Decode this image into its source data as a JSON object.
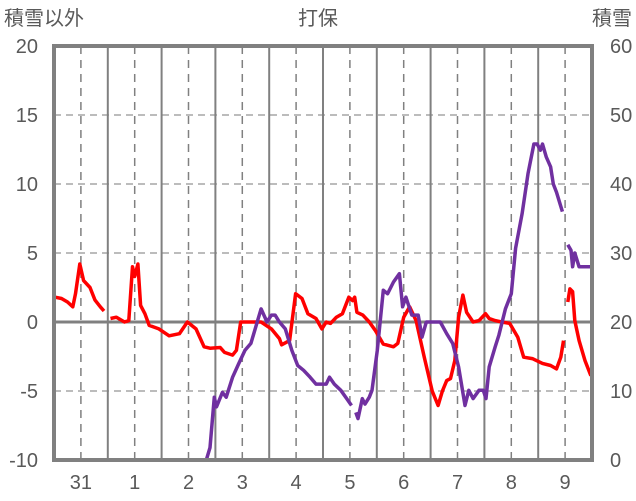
{
  "chart_data": {
    "type": "line",
    "title": "打保",
    "ylabel_left": "積雪以外",
    "ylabel_right": "積雪",
    "ylim_left": [
      -10,
      20
    ],
    "ylim_right": [
      0,
      60
    ],
    "yticks_left": [
      "20",
      "15",
      "10",
      "5",
      "0",
      "-5",
      "-10"
    ],
    "yticks_right": [
      "60",
      "50",
      "40",
      "30",
      "20",
      "10",
      "0"
    ],
    "xlim_days": [
      0,
      10
    ],
    "xtick_labels": [
      "31",
      "1",
      "2",
      "3",
      "4",
      "5",
      "6",
      "7",
      "8",
      "9"
    ],
    "grid": true,
    "colors": {
      "temp": "#ff0000",
      "snow": "#7030a0",
      "axis": "#808080",
      "grid": "#808080"
    },
    "series": [
      {
        "name": "積雪以外",
        "axis": "left",
        "color": "#ff0000",
        "points": [
          [
            0.02,
            1.8
          ],
          [
            0.14,
            1.7
          ],
          [
            0.25,
            1.45
          ],
          [
            0.35,
            1.1
          ],
          [
            0.4,
            2.05
          ],
          [
            0.48,
            4.2
          ],
          [
            0.55,
            3.0
          ],
          [
            0.67,
            2.5
          ],
          [
            0.76,
            1.6
          ],
          [
            0.86,
            1.1
          ],
          [
            0.93,
            0.8
          ],
          null,
          [
            1.05,
            0.25
          ],
          [
            1.16,
            0.35
          ],
          [
            1.31,
            0
          ],
          [
            1.39,
            0.1
          ],
          [
            1.46,
            4.0
          ],
          [
            1.5,
            3.3
          ],
          [
            1.56,
            4.2
          ],
          [
            1.61,
            1.2
          ],
          [
            1.69,
            0.6
          ],
          [
            1.77,
            -0.25
          ],
          [
            1.95,
            -0.5
          ],
          [
            2.14,
            -1.0
          ],
          [
            2.33,
            -0.85
          ],
          [
            2.48,
            0
          ],
          [
            2.64,
            -0.5
          ],
          [
            2.79,
            -1.8
          ],
          [
            2.9,
            -1.9
          ],
          [
            3.09,
            -1.85
          ],
          [
            3.17,
            -2.2
          ],
          [
            3.32,
            -2.4
          ],
          [
            3.39,
            -2.05
          ],
          [
            3.47,
            0
          ],
          [
            3.85,
            0
          ],
          [
            4.04,
            -0.5
          ],
          [
            4.19,
            -1.2
          ],
          [
            4.23,
            -1.65
          ],
          [
            4.38,
            -1.35
          ],
          [
            4.49,
            2.05
          ],
          [
            4.61,
            1.7
          ],
          [
            4.72,
            0.6
          ],
          [
            4.87,
            0.25
          ],
          [
            4.98,
            -0.5
          ],
          [
            5.06,
            0
          ],
          [
            5.14,
            -0.1
          ],
          [
            5.25,
            0.35
          ],
          [
            5.36,
            0.6
          ],
          [
            5.48,
            1.8
          ],
          [
            5.55,
            1.55
          ],
          [
            5.59,
            1.8
          ],
          [
            5.63,
            0.7
          ],
          [
            5.74,
            0.5
          ],
          [
            5.86,
            0
          ],
          [
            5.97,
            -0.6
          ],
          [
            6.12,
            -1.6
          ],
          [
            6.31,
            -1.8
          ],
          [
            6.39,
            -1.55
          ],
          [
            6.5,
            0.35
          ],
          [
            6.61,
            1.1
          ],
          [
            6.73,
            0.1
          ],
          [
            6.88,
            -2.5
          ],
          [
            7.03,
            -5.0
          ],
          [
            7.14,
            -6.05
          ],
          [
            7.22,
            -5.0
          ],
          [
            7.3,
            -4.25
          ],
          [
            7.37,
            -4.1
          ],
          [
            7.45,
            -2.8
          ],
          [
            7.52,
            0.35
          ],
          [
            7.6,
            1.95
          ],
          [
            7.67,
            0.7
          ],
          [
            7.79,
            0
          ],
          [
            7.9,
            0.1
          ],
          [
            8.02,
            0.6
          ],
          [
            8.09,
            0.25
          ],
          [
            8.2,
            0.1
          ],
          [
            8.32,
            0
          ],
          [
            8.47,
            -0.1
          ],
          [
            8.62,
            -1.1
          ],
          [
            8.73,
            -2.55
          ],
          [
            8.89,
            -2.65
          ],
          [
            9.08,
            -3.0
          ],
          [
            9.23,
            -3.15
          ],
          [
            9.34,
            -3.4
          ],
          [
            9.42,
            -2.55
          ],
          [
            9.47,
            -1.35
          ],
          null,
          [
            9.55,
            1.45
          ],
          [
            9.59,
            2.4
          ],
          [
            9.64,
            2.2
          ],
          [
            9.68,
            0.1
          ],
          [
            9.76,
            -1.35
          ],
          [
            9.87,
            -2.8
          ],
          [
            9.98,
            -3.9
          ]
        ]
      },
      {
        "name": "積雪",
        "axis": "right",
        "color": "#7030a0",
        "points": [
          [
            0,
            0
          ],
          [
            2.83,
            0
          ],
          [
            2.9,
            1.8
          ],
          [
            2.98,
            9.1
          ],
          [
            3.02,
            7.7
          ],
          [
            3.13,
            9.8
          ],
          [
            3.2,
            9.1
          ],
          [
            3.32,
            12
          ],
          [
            3.43,
            13.9
          ],
          [
            3.55,
            15.9
          ],
          [
            3.66,
            16.9
          ],
          [
            3.77,
            19.8
          ],
          [
            3.85,
            21.9
          ],
          [
            3.96,
            20
          ],
          [
            4.04,
            21
          ],
          [
            4.11,
            21
          ],
          [
            4.19,
            20
          ],
          [
            4.3,
            19
          ],
          [
            4.42,
            15.9
          ],
          [
            4.53,
            13.7
          ],
          [
            4.64,
            13
          ],
          [
            4.76,
            12
          ],
          [
            4.87,
            11
          ],
          [
            5.06,
            11
          ],
          [
            5.12,
            12
          ],
          [
            5.21,
            11
          ],
          [
            5.33,
            10.1
          ],
          [
            5.44,
            8.9
          ],
          [
            5.53,
            7.9
          ],
          null,
          [
            5.61,
            6.9
          ],
          [
            5.65,
            6
          ],
          [
            5.73,
            8.9
          ],
          [
            5.78,
            8.1
          ],
          [
            5.86,
            9.1
          ],
          [
            5.91,
            10.1
          ],
          [
            6.01,
            15.9
          ],
          [
            6.12,
            24.6
          ],
          [
            6.2,
            24.1
          ],
          [
            6.31,
            25.8
          ],
          [
            6.42,
            27
          ],
          [
            6.48,
            22.2
          ],
          [
            6.54,
            23.6
          ],
          [
            6.65,
            21
          ],
          [
            6.77,
            21
          ],
          [
            6.84,
            17.8
          ],
          [
            6.92,
            20
          ],
          [
            7.18,
            20
          ],
          [
            7.3,
            18.3
          ],
          [
            7.41,
            16.9
          ],
          [
            7.52,
            13.5
          ],
          [
            7.64,
            7.9
          ],
          [
            7.71,
            10.1
          ],
          [
            7.79,
            8.9
          ],
          [
            7.9,
            10.1
          ],
          [
            7.98,
            10.1
          ],
          [
            8.03,
            8.9
          ],
          [
            8.09,
            13.5
          ],
          [
            8.2,
            16.4
          ],
          [
            8.27,
            18.1
          ],
          [
            8.39,
            21.9
          ],
          [
            8.5,
            24.1
          ],
          [
            8.58,
            30.7
          ],
          [
            8.7,
            35.7
          ],
          [
            8.81,
            41.5
          ],
          [
            8.92,
            45.8
          ],
          [
            8.98,
            45.8
          ],
          [
            9.04,
            44.9
          ],
          [
            9.08,
            45.8
          ],
          [
            9.15,
            43.9
          ],
          [
            9.23,
            42.5
          ],
          [
            9.28,
            40
          ],
          [
            9.34,
            38.8
          ],
          [
            9.45,
            36
          ],
          null,
          [
            9.55,
            31.2
          ],
          [
            9.61,
            30.4
          ],
          [
            9.64,
            28
          ],
          [
            9.68,
            30
          ],
          [
            9.76,
            28
          ],
          [
            9.98,
            28
          ]
        ]
      }
    ]
  }
}
